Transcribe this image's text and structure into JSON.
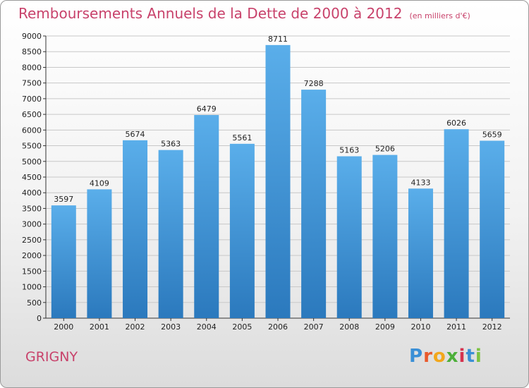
{
  "title": "Remboursements Annuels de la Dette de 2000 à 2012",
  "unit": "(en milliers d'€)",
  "city": "GRIGNY",
  "logo": {
    "text": "Proxiti",
    "letters": [
      {
        "char": "P",
        "color": "#3a8fd6"
      },
      {
        "char": "r",
        "color": "#e95a2c"
      },
      {
        "char": "o",
        "color": "#f2a71c"
      },
      {
        "char": "x",
        "color": "#4caf3a"
      },
      {
        "char": "i",
        "color": "#d6334f"
      },
      {
        "char": "t",
        "color": "#3a8fd6"
      },
      {
        "char": "i",
        "color": "#7cc242"
      }
    ]
  },
  "colors": {
    "bar_light": "#5aaeea",
    "bar_dark": "#2b79bd",
    "grid": "#c8c8c8",
    "title": "#c8426b"
  },
  "chart_data": {
    "type": "bar",
    "title": "Remboursements Annuels de la Dette de 2000 à 2012",
    "subtitle": "(en milliers d'€)",
    "xlabel": "",
    "ylabel": "",
    "categories": [
      "2000",
      "2001",
      "2002",
      "2003",
      "2004",
      "2005",
      "2006",
      "2007",
      "2008",
      "2009",
      "2010",
      "2011",
      "2012"
    ],
    "values": [
      3597,
      4109,
      5674,
      5363,
      6479,
      5561,
      8711,
      7288,
      5163,
      5206,
      4133,
      6026,
      5659
    ],
    "ylim": [
      0,
      9000
    ],
    "ytick_step": 500,
    "grid": true,
    "legend": "none"
  }
}
